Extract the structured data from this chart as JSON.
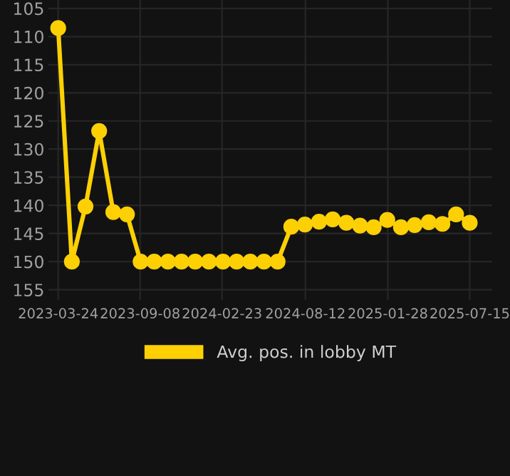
{
  "chart_data": {
    "type": "line",
    "x": [
      "2023-03-24",
      "2023-04-21",
      "2023-05-19",
      "2023-06-16",
      "2023-07-15",
      "2023-08-12",
      "2023-09-09",
      "2023-10-07",
      "2023-11-04",
      "2023-12-02",
      "2023-12-30",
      "2024-01-27",
      "2024-02-25",
      "2024-03-24",
      "2024-04-21",
      "2024-05-19",
      "2024-06-16",
      "2024-07-14",
      "2024-08-11",
      "2024-09-09",
      "2024-10-07",
      "2024-11-04",
      "2024-12-02",
      "2024-12-30",
      "2025-01-27",
      "2025-02-24",
      "2025-03-24",
      "2025-04-22",
      "2025-05-20",
      "2025-06-17",
      "2025-07-15"
    ],
    "series": [
      {
        "name": "Avg. pos. in lobby MT",
        "color": "#ffd000",
        "values": [
          108.5,
          150,
          140.2,
          126.8,
          141.2,
          141.6,
          150,
          150,
          150,
          150,
          150,
          150,
          150,
          150,
          150,
          150,
          150,
          143.8,
          143.4,
          142.9,
          142.5,
          143.1,
          143.6,
          143.9,
          142.6,
          143.9,
          143.5,
          143.0,
          143.3,
          141.6,
          143.1
        ]
      }
    ],
    "xlim": [
      "2023-03-04",
      "2025-08-30"
    ],
    "xticks": [
      "2023-03-24",
      "2023-09-08",
      "2024-02-23",
      "2024-08-12",
      "2025-01-28",
      "2025-07-15"
    ],
    "ylim": [
      156.8,
      103.5
    ],
    "yticks": [
      105,
      110,
      115,
      120,
      125,
      130,
      135,
      140,
      145,
      150,
      155
    ],
    "grid": true,
    "legend": "bottom",
    "marker": "circle",
    "line_style": "solid"
  }
}
